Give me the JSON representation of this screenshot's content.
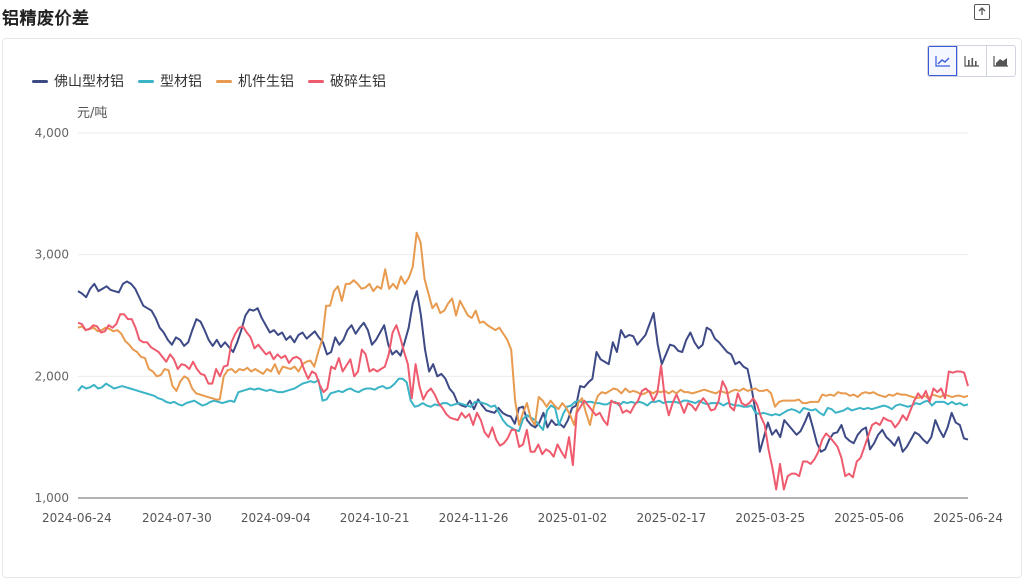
{
  "page": {
    "title": "铝精废价差"
  },
  "toolbar": {
    "export_icon": "export-icon",
    "chart_types": [
      "line-chart-icon",
      "bar-chart-icon",
      "area-chart-icon"
    ],
    "active": "line"
  },
  "chart_data": {
    "type": "line",
    "ylabel": "元/吨",
    "ylim": [
      1000,
      4000
    ],
    "yticks": [
      "1,000",
      "2,000",
      "3,000",
      "4,000"
    ],
    "xticks": [
      "2024-06-24",
      "2024-07-30",
      "2024-09-04",
      "2024-10-21",
      "2024-11-26",
      "2025-01-02",
      "2025-02-17",
      "2025-03-25",
      "2025-05-06",
      "2025-06-24"
    ],
    "grid": true,
    "legend_position": "top-left",
    "series": [
      {
        "name": "佛山型材铝",
        "color": "#3d4a86",
        "values": [
          2700,
          2680,
          2650,
          2720,
          2760,
          2700,
          2720,
          2740,
          2710,
          2700,
          2690,
          2760,
          2780,
          2760,
          2720,
          2650,
          2580,
          2560,
          2540,
          2480,
          2400,
          2360,
          2300,
          2260,
          2320,
          2300,
          2250,
          2280,
          2380,
          2470,
          2450,
          2380,
          2300,
          2250,
          2300,
          2240,
          2280,
          2240,
          2200,
          2280,
          2380,
          2500,
          2550,
          2540,
          2560,
          2480,
          2420,
          2360,
          2380,
          2340,
          2360,
          2300,
          2330,
          2280,
          2340,
          2360,
          2310,
          2340,
          2370,
          2320,
          2280,
          2180,
          2200,
          2320,
          2260,
          2300,
          2380,
          2420,
          2350,
          2400,
          2440,
          2380,
          2260,
          2300,
          2360,
          2420,
          2260,
          2180,
          2210,
          2170,
          2280,
          2400,
          2600,
          2700,
          2500,
          2220,
          2040,
          2100,
          2000,
          2020,
          1980,
          1900,
          1860,
          1780,
          1760,
          1750,
          1800,
          1730,
          1810,
          1760,
          1720,
          1710,
          1700,
          1740,
          1700,
          1680,
          1670,
          1610,
          1740,
          1750,
          1640,
          1600,
          1580,
          1620,
          1700,
          1580,
          1640,
          1600,
          1610,
          1580,
          1640,
          1740,
          1760,
          1920,
          1910,
          1950,
          1980,
          2200,
          2140,
          2120,
          2100,
          2280,
          2200,
          2380,
          2320,
          2340,
          2330,
          2260,
          2300,
          2340,
          2430,
          2520,
          2260,
          2100,
          2180,
          2260,
          2250,
          2210,
          2200,
          2300,
          2360,
          2280,
          2230,
          2260,
          2400,
          2380,
          2310,
          2280,
          2240,
          2200,
          2180,
          2100,
          2120,
          2080,
          2060,
          1900,
          1700,
          1380,
          1500,
          1620,
          1520,
          1560,
          1500,
          1640,
          1600,
          1560,
          1520,
          1550,
          1620,
          1700,
          1580,
          1450,
          1380,
          1400,
          1480,
          1530,
          1540,
          1600,
          1500,
          1470,
          1450,
          1520,
          1560,
          1580,
          1400,
          1450,
          1520,
          1560,
          1500,
          1470,
          1430,
          1500,
          1380,
          1420,
          1480,
          1540,
          1520,
          1480,
          1450,
          1500,
          1640,
          1560,
          1500,
          1580,
          1700,
          1620,
          1600,
          1490,
          1480
        ]
      },
      {
        "name": "型材铝",
        "color": "#3bb4c6",
        "values": [
          1880,
          1920,
          1900,
          1910,
          1930,
          1900,
          1910,
          1940,
          1920,
          1900,
          1910,
          1920,
          1910,
          1900,
          1890,
          1880,
          1870,
          1860,
          1850,
          1840,
          1820,
          1810,
          1790,
          1780,
          1790,
          1770,
          1760,
          1780,
          1790,
          1800,
          1780,
          1760,
          1770,
          1790,
          1800,
          1790,
          1780,
          1790,
          1800,
          1790,
          1870,
          1880,
          1890,
          1900,
          1890,
          1900,
          1890,
          1880,
          1890,
          1880,
          1870,
          1870,
          1880,
          1890,
          1900,
          1920,
          1940,
          1950,
          1960,
          1950,
          1970,
          1800,
          1810,
          1860,
          1870,
          1880,
          1870,
          1890,
          1900,
          1880,
          1870,
          1890,
          1900,
          1900,
          1890,
          1910,
          1920,
          1900,
          1910,
          1940,
          1980,
          1980,
          1950,
          1800,
          1750,
          1760,
          1780,
          1760,
          1750,
          1770,
          1760,
          1780,
          1780,
          1760,
          1770,
          1780,
          1770,
          1760,
          1750,
          1790,
          1790,
          1780,
          1770,
          1750,
          1760,
          1700,
          1640,
          1600,
          1580,
          1560,
          1550,
          1650,
          1680,
          1660,
          1640,
          1600,
          1560,
          1720,
          1760,
          1740,
          1600,
          1690,
          1750,
          1760,
          1790,
          1800,
          1780,
          1790,
          1790,
          1780,
          1780,
          1770,
          1770,
          1790,
          1790,
          1760,
          1790,
          1780,
          1790,
          1780,
          1790,
          1780,
          1760,
          1790,
          1790,
          1800,
          1780,
          1790,
          1790,
          1790,
          1780,
          1800,
          1800,
          1790,
          1780,
          1800,
          1780,
          1770,
          1780,
          1780,
          1780,
          1760,
          1780,
          1770,
          1760,
          1760,
          1750,
          1750,
          1760,
          1700,
          1690,
          1700,
          1690,
          1680,
          1690,
          1680,
          1700,
          1720,
          1730,
          1720,
          1700,
          1740,
          1730,
          1720,
          1730,
          1700,
          1680,
          1740,
          1730,
          1700,
          1710,
          1720,
          1740,
          1720,
          1730,
          1740,
          1730,
          1740,
          1730,
          1740,
          1750,
          1760,
          1750,
          1730,
          1760,
          1770,
          1760,
          1750,
          1760,
          1780,
          1770,
          1790,
          1800,
          1760,
          1790,
          1790,
          1790,
          1770,
          1790,
          1770,
          1780,
          1760,
          1770
        ]
      },
      {
        "name": "机件生铝",
        "color": "#e89a4f",
        "values": [
          2400,
          2410,
          2380,
          2390,
          2400,
          2370,
          2380,
          2400,
          2390,
          2370,
          2380,
          2350,
          2290,
          2260,
          2220,
          2200,
          2160,
          2150,
          2060,
          2040,
          2000,
          2010,
          2060,
          2050,
          1920,
          1880,
          1960,
          2000,
          1980,
          1900,
          1860,
          1850,
          1840,
          1830,
          1820,
          1810,
          1810,
          2000,
          2050,
          2060,
          2030,
          2060,
          2050,
          2070,
          2040,
          2060,
          2040,
          2020,
          2060,
          2040,
          2100,
          2020,
          2080,
          2070,
          2060,
          2080,
          2040,
          2100,
          2120,
          2130,
          2080,
          2200,
          2300,
          2580,
          2580,
          2700,
          2740,
          2620,
          2760,
          2760,
          2790,
          2760,
          2720,
          2730,
          2760,
          2700,
          2740,
          2720,
          2880,
          2720,
          2760,
          2720,
          2820,
          2760,
          2810,
          2900,
          3180,
          3100,
          2800,
          2680,
          2560,
          2600,
          2520,
          2540,
          2600,
          2640,
          2500,
          2620,
          2560,
          2500,
          2480,
          2540,
          2440,
          2450,
          2420,
          2400,
          2380,
          2400,
          2350,
          2300,
          2220,
          1800,
          1600,
          1700,
          1780,
          1650,
          1600,
          1830,
          1800,
          1750,
          1800,
          1760,
          1730,
          1780,
          1740,
          1680,
          1600,
          1780,
          1820,
          1700,
          1600,
          1750,
          1840,
          1870,
          1860,
          1880,
          1900,
          1890,
          1860,
          1900,
          1870,
          1880,
          1870,
          1850,
          1860,
          1880,
          1860,
          1880,
          1870,
          1880,
          1860,
          1880,
          1860,
          1890,
          1870,
          1870,
          1860,
          1870,
          1880,
          1890,
          1880,
          1870,
          1860,
          1880,
          1870,
          1860,
          1880,
          1890,
          1880,
          1900,
          1880,
          1890,
          1900,
          1880,
          1880,
          1890,
          1860,
          1750,
          1790,
          1800,
          1800,
          1800,
          1800,
          1810,
          1780,
          1780,
          1790,
          1790,
          1790,
          1850,
          1840,
          1850,
          1840,
          1870,
          1860,
          1860,
          1840,
          1850,
          1830,
          1860,
          1870,
          1860,
          1870,
          1850,
          1840,
          1830,
          1850,
          1840,
          1860,
          1850,
          1850,
          1840,
          1830,
          1820,
          1830,
          1840,
          1820,
          1850,
          1840,
          1830,
          1850,
          1840,
          1830,
          1840,
          1840,
          1830,
          1840
        ]
      },
      {
        "name": "破碎生铝",
        "color": "#ef5b6e",
        "values": [
          2440,
          2430,
          2380,
          2390,
          2420,
          2410,
          2360,
          2370,
          2420,
          2400,
          2430,
          2510,
          2510,
          2470,
          2470,
          2400,
          2300,
          2280,
          2280,
          2240,
          2220,
          2200,
          2160,
          2120,
          2180,
          2140,
          2060,
          2100,
          2090,
          2060,
          2120,
          2060,
          2020,
          2010,
          1940,
          1940,
          2060,
          2000,
          2080,
          2090,
          2280,
          2350,
          2400,
          2410,
          2360,
          2320,
          2230,
          2260,
          2220,
          2180,
          2200,
          2140,
          2180,
          2150,
          2170,
          2110,
          2150,
          2160,
          2140,
          2050,
          1980,
          2040,
          2020,
          1930,
          1870,
          1900,
          2080,
          2060,
          2150,
          2040,
          2090,
          2140,
          2000,
          2040,
          2220,
          2180,
          2040,
          2060,
          2040,
          2060,
          2080,
          2180,
          2360,
          2420,
          2320,
          2200,
          2100,
          1820,
          2100,
          1920,
          1810,
          1870,
          1900,
          1850,
          1780,
          1740,
          1690,
          1660,
          1650,
          1640,
          1700,
          1660,
          1690,
          1600,
          1700,
          1640,
          1540,
          1500,
          1580,
          1480,
          1430,
          1450,
          1490,
          1560,
          1560,
          1420,
          1440,
          1560,
          1380,
          1380,
          1440,
          1360,
          1400,
          1380,
          1340,
          1440,
          1380,
          1330,
          1500,
          1270,
          1700,
          1750,
          1800,
          1760,
          1720,
          1680,
          1700,
          1640,
          1600,
          1800,
          1780,
          1780,
          1700,
          1720,
          1700,
          1760,
          1800,
          1880,
          1900,
          1870,
          1800,
          1860,
          2090,
          1810,
          1680,
          1780,
          1850,
          1780,
          1700,
          1780,
          1760,
          1720,
          1780,
          1820,
          1780,
          1720,
          1730,
          1800,
          1960,
          1900,
          1750,
          1720,
          1860,
          1780,
          1760,
          1780,
          1820,
          1770,
          1670,
          1600,
          1400,
          1250,
          1070,
          1280,
          1070,
          1180,
          1200,
          1200,
          1180,
          1300,
          1300,
          1280,
          1320,
          1380,
          1480,
          1530,
          1500,
          1460,
          1420,
          1330,
          1180,
          1200,
          1170,
          1300,
          1330,
          1420,
          1510,
          1600,
          1620,
          1600,
          1660,
          1640,
          1630,
          1580,
          1620,
          1680,
          1640,
          1720,
          1800,
          1860,
          1820,
          1880,
          1790,
          1900,
          1870,
          1900,
          1820,
          2040,
          2030,
          2040,
          2040,
          2030,
          1920
        ]
      }
    ]
  }
}
